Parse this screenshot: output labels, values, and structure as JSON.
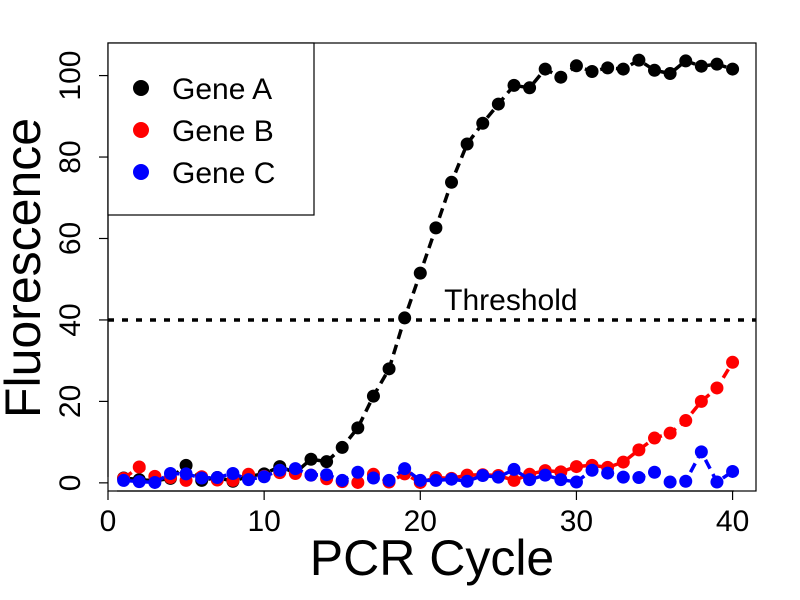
{
  "chart_data": {
    "type": "line",
    "title": "",
    "xlabel": "PCR Cycle",
    "ylabel": "Fluorescence",
    "xlim": [
      0,
      41.5
    ],
    "ylim": [
      -2,
      108
    ],
    "x_ticks": [
      0,
      10,
      20,
      30,
      40
    ],
    "x_tick_labels": [
      "0",
      "10",
      "20",
      "30",
      "40"
    ],
    "y_ticks": [
      0,
      20,
      40,
      60,
      80,
      100
    ],
    "y_tick_labels": [
      "0",
      "20",
      "40",
      "60",
      "80",
      "100"
    ],
    "grid": false,
    "legend_position": "top-left",
    "x": [
      1,
      2,
      3,
      4,
      5,
      6,
      7,
      8,
      9,
      10,
      11,
      12,
      13,
      14,
      15,
      16,
      17,
      18,
      19,
      20,
      21,
      22,
      23,
      24,
      25,
      26,
      27,
      28,
      29,
      30,
      31,
      32,
      33,
      34,
      35,
      36,
      37,
      38,
      39,
      40
    ],
    "series": [
      {
        "name": "Gene A",
        "color": "#000000",
        "values": [
          1.2,
          0.8,
          0.5,
          1.1,
          4.3,
          0.6,
          1.3,
          0.4,
          1.6,
          2.2,
          4.0,
          2.5,
          5.8,
          5.2,
          8.7,
          13.5,
          21.3,
          28.0,
          40.5,
          51.5,
          62.6,
          73.8,
          83.2,
          88.3,
          93.0,
          97.6,
          97.0,
          101.6,
          99.6,
          102.4,
          101.0,
          101.9,
          101.6,
          103.8,
          101.3,
          100.5,
          103.6,
          102.3,
          102.8,
          101.6
        ]
      },
      {
        "name": "Gene B",
        "color": "#ff0000",
        "values": [
          1.1,
          3.9,
          1.6,
          1.3,
          0.6,
          1.5,
          0.7,
          0.6,
          2.1,
          1.6,
          2.5,
          2.3,
          1.9,
          1.0,
          0.3,
          0.1,
          2.1,
          0.2,
          2.2,
          0.1,
          1.3,
          1.1,
          1.9,
          2.0,
          1.8,
          0.6,
          2.1,
          3.0,
          2.7,
          4.0,
          4.3,
          3.8,
          5.1,
          8.1,
          11.0,
          12.2,
          15.3,
          20.0,
          23.3,
          29.6
        ]
      },
      {
        "name": "Gene C",
        "color": "#0000ff",
        "values": [
          0.6,
          0.3,
          0.1,
          2.3,
          2.2,
          1.2,
          1.3,
          2.3,
          0.8,
          1.5,
          3.1,
          3.5,
          1.9,
          2.0,
          0.6,
          2.6,
          1.2,
          0.6,
          3.5,
          0.6,
          0.6,
          0.9,
          0.4,
          1.8,
          1.4,
          3.3,
          0.8,
          1.9,
          0.8,
          0.2,
          3.1,
          2.4,
          1.4,
          1.3,
          2.6,
          0.2,
          0.4,
          7.6,
          0.2,
          2.8
        ]
      }
    ],
    "threshold": {
      "value": 40,
      "label": "Threshold"
    }
  },
  "legend": {
    "items": [
      "Gene A",
      "Gene B",
      "Gene C"
    ]
  }
}
